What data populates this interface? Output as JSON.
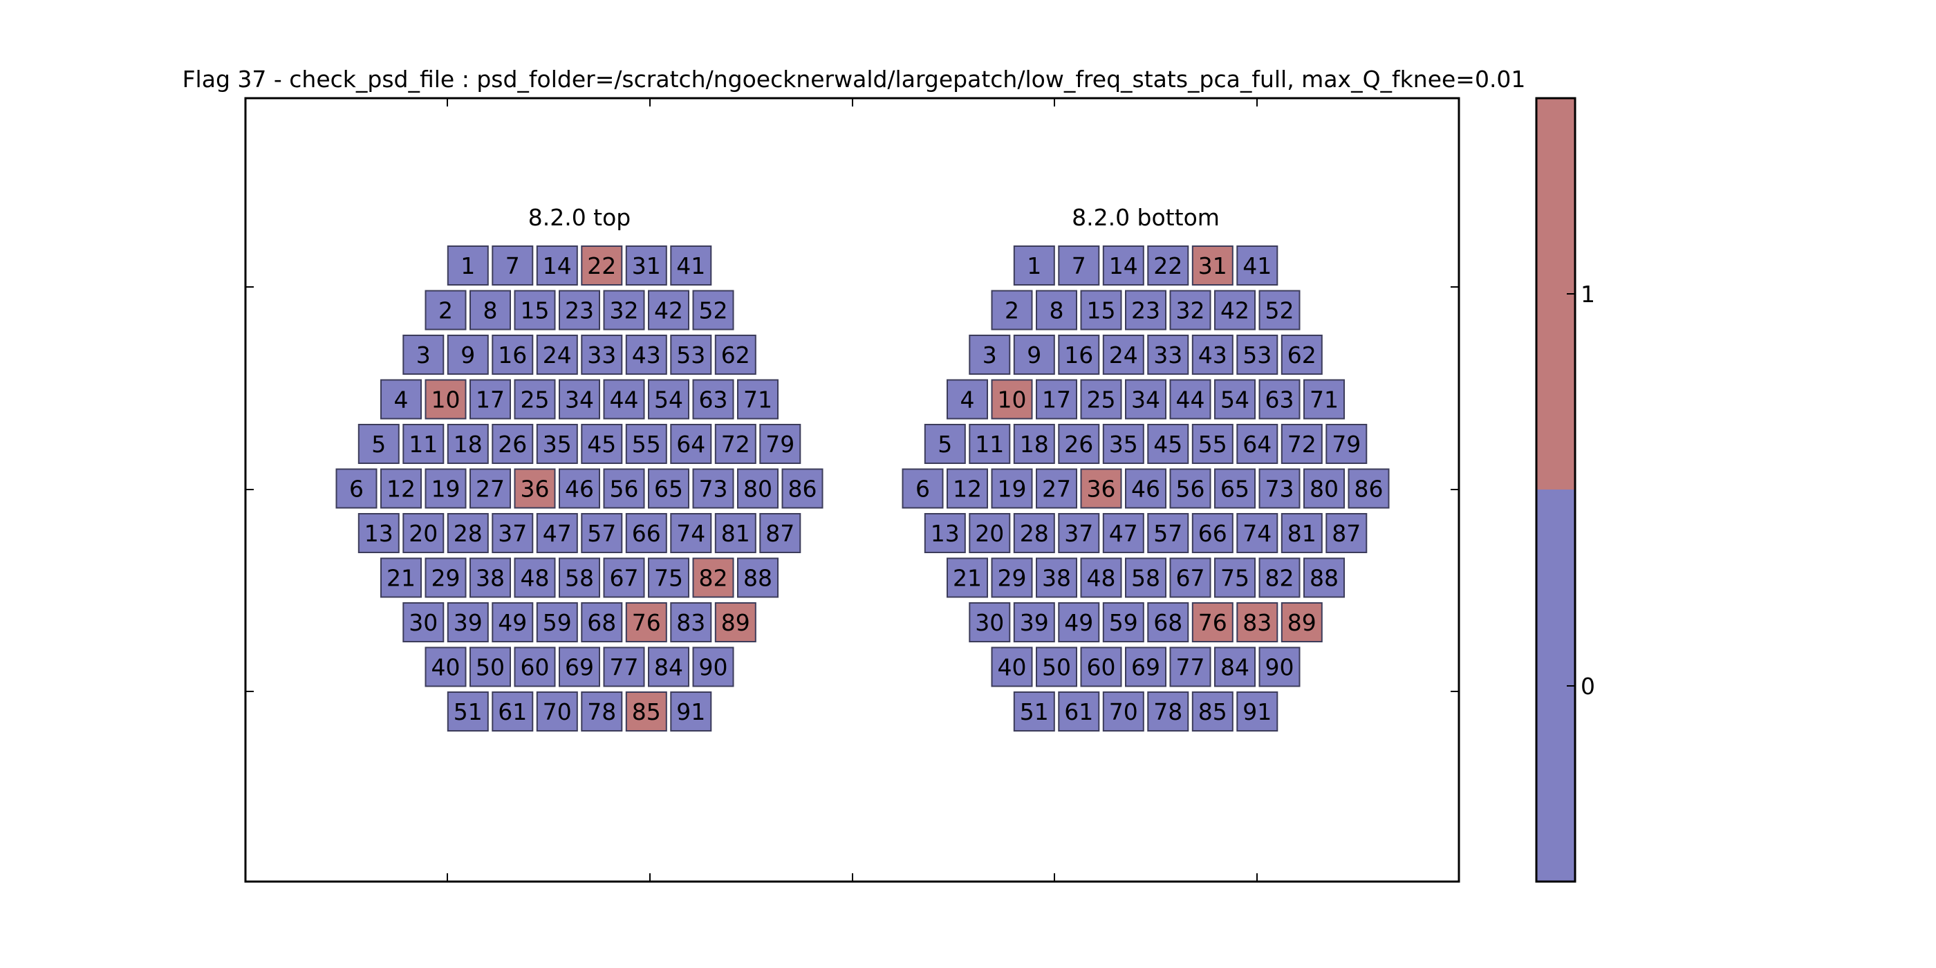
{
  "chart_data": {
    "type": "heatmap",
    "title": "Flag 37 - check_psd_file : psd_folder=/scratch/ngoecknerwald/largepatch/low_freq_stats_pca_full, max_Q_fknee=0.01",
    "colors": {
      "0": "#8080c2",
      "1": "#c07b7b",
      "edge": "#3c3c5a"
    },
    "colorbar": {
      "ticks": [
        "0",
        "1"
      ],
      "range": [
        0,
        1
      ]
    },
    "grid": false,
    "panels": [
      {
        "name": "8.2.0 top",
        "rows": [
          [
            1,
            7,
            14,
            22,
            31,
            41
          ],
          [
            2,
            8,
            15,
            23,
            32,
            42,
            52
          ],
          [
            3,
            9,
            16,
            24,
            33,
            43,
            53,
            62
          ],
          [
            4,
            10,
            17,
            25,
            34,
            44,
            54,
            63,
            71
          ],
          [
            5,
            11,
            18,
            26,
            35,
            45,
            55,
            64,
            72,
            79
          ],
          [
            6,
            12,
            19,
            27,
            36,
            46,
            56,
            65,
            73,
            80,
            86
          ],
          [
            13,
            20,
            28,
            37,
            47,
            57,
            66,
            74,
            81,
            87
          ],
          [
            21,
            29,
            38,
            48,
            58,
            67,
            75,
            82,
            88
          ],
          [
            30,
            39,
            49,
            59,
            68,
            76,
            83,
            89
          ],
          [
            40,
            50,
            60,
            69,
            77,
            84,
            90
          ],
          [
            51,
            61,
            70,
            78,
            85,
            91
          ]
        ],
        "flagged": [
          22,
          10,
          36,
          82,
          76,
          89,
          85
        ]
      },
      {
        "name": "8.2.0 bottom",
        "rows": [
          [
            1,
            7,
            14,
            22,
            31,
            41
          ],
          [
            2,
            8,
            15,
            23,
            32,
            42,
            52
          ],
          [
            3,
            9,
            16,
            24,
            33,
            43,
            53,
            62
          ],
          [
            4,
            10,
            17,
            25,
            34,
            44,
            54,
            63,
            71
          ],
          [
            5,
            11,
            18,
            26,
            35,
            45,
            55,
            64,
            72,
            79
          ],
          [
            6,
            12,
            19,
            27,
            36,
            46,
            56,
            65,
            73,
            80,
            86
          ],
          [
            13,
            20,
            28,
            37,
            47,
            57,
            66,
            74,
            81,
            87
          ],
          [
            21,
            29,
            38,
            48,
            58,
            67,
            75,
            82,
            88
          ],
          [
            30,
            39,
            49,
            59,
            68,
            76,
            83,
            89
          ],
          [
            40,
            50,
            60,
            69,
            77,
            84,
            90
          ],
          [
            51,
            61,
            70,
            78,
            85,
            91
          ]
        ],
        "flagged": [
          31,
          10,
          36,
          76,
          83,
          89
        ]
      }
    ]
  }
}
